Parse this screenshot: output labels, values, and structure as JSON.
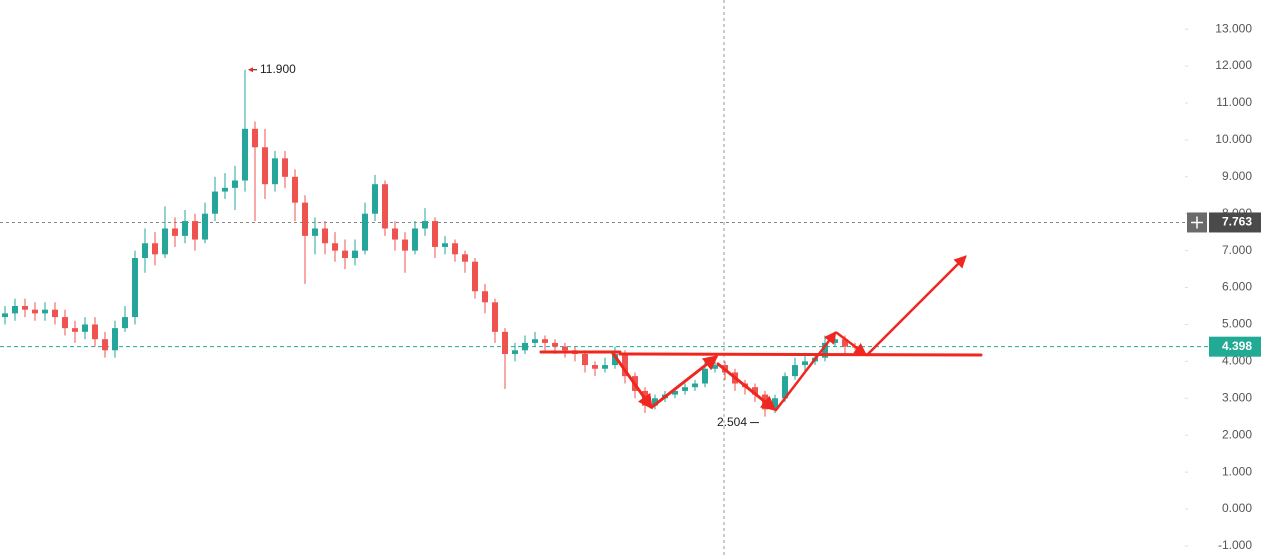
{
  "chart_data": {
    "type": "candlestick",
    "up_color": "#26a69a",
    "down_color": "#ef5350",
    "ylim": [
      -1.3,
      13.79
    ],
    "yticks": [
      {
        "value": -1,
        "label": "-1.000"
      },
      {
        "value": 0,
        "label": "0.000"
      },
      {
        "value": 1,
        "label": "1.000"
      },
      {
        "value": 2,
        "label": "2.000"
      },
      {
        "value": 3,
        "label": "3.000"
      },
      {
        "value": 4,
        "label": "4.000"
      },
      {
        "value": 5,
        "label": "5.000"
      },
      {
        "value": 6,
        "label": "6.000"
      },
      {
        "value": 7,
        "label": "7.000"
      },
      {
        "value": 8,
        "label": "8.000"
      },
      {
        "value": 9,
        "label": "9.000"
      },
      {
        "value": 10,
        "label": "10.000"
      },
      {
        "value": 11,
        "label": "11.000"
      },
      {
        "value": 12,
        "label": "12.000"
      },
      {
        "value": 13,
        "label": "13.000"
      }
    ],
    "grid": false,
    "open": [
      5.2,
      5.3,
      5.5,
      5.4,
      5.3,
      5.4,
      5.2,
      4.9,
      4.8,
      5.0,
      4.6,
      4.3,
      4.9,
      5.2,
      6.8,
      7.2,
      6.9,
      7.6,
      7.4,
      7.8,
      7.3,
      8.0,
      8.6,
      8.7,
      8.9,
      10.3,
      9.8,
      8.8,
      9.5,
      9.0,
      8.3,
      7.4,
      7.6,
      7.2,
      7.0,
      6.8,
      7.0,
      8.0,
      8.8,
      7.6,
      7.3,
      7.0,
      7.6,
      7.8,
      7.1,
      7.2,
      6.9,
      6.7,
      5.9,
      5.6,
      4.8,
      4.2,
      4.3,
      4.5,
      4.6,
      4.5,
      4.4,
      4.3,
      4.2,
      3.9,
      3.8,
      3.9,
      4.2,
      3.6,
      3.2,
      2.8,
      3.0,
      3.1,
      3.2,
      3.3,
      3.4,
      3.8,
      3.9,
      3.7,
      3.4,
      3.3,
      3.1,
      2.7,
      3.0,
      3.6,
      3.9,
      4.0,
      4.1,
      4.5,
      4.6,
      4.4
    ],
    "high": [
      5.5,
      5.7,
      5.7,
      5.6,
      5.6,
      5.6,
      5.4,
      5.1,
      5.2,
      5.2,
      4.8,
      5.1,
      5.5,
      7.0,
      7.6,
      7.5,
      8.2,
      7.9,
      8.1,
      8.0,
      8.3,
      9.0,
      9.1,
      9.3,
      11.9,
      10.5,
      10.3,
      9.7,
      9.7,
      9.2,
      8.5,
      7.9,
      7.8,
      7.5,
      7.3,
      7.3,
      8.3,
      9.05,
      8.9,
      7.8,
      7.5,
      7.8,
      8.15,
      7.9,
      7.4,
      7.3,
      7.0,
      6.8,
      6.1,
      5.7,
      4.9,
      4.5,
      4.7,
      4.8,
      4.7,
      4.6,
      4.5,
      4.4,
      4.3,
      4.0,
      4.1,
      4.4,
      4.3,
      3.7,
      3.3,
      3.1,
      3.2,
      3.3,
      3.4,
      3.5,
      4.0,
      4.1,
      4.0,
      3.8,
      3.5,
      3.4,
      3.2,
      3.1,
      3.7,
      4.1,
      4.2,
      4.2,
      4.7,
      4.8,
      4.7,
      4.5
    ],
    "low": [
      5.0,
      5.1,
      5.2,
      5.1,
      5.1,
      5.0,
      4.7,
      4.5,
      4.6,
      4.4,
      4.1,
      4.1,
      4.8,
      5.0,
      6.4,
      6.6,
      6.8,
      7.1,
      7.2,
      7.0,
      7.2,
      7.8,
      8.4,
      8.1,
      8.6,
      7.8,
      8.4,
      8.6,
      8.7,
      7.8,
      6.1,
      6.9,
      6.9,
      6.7,
      6.5,
      6.6,
      6.9,
      7.8,
      7.4,
      7.0,
      6.4,
      6.9,
      7.4,
      6.8,
      6.9,
      6.7,
      6.4,
      5.7,
      5.3,
      4.5,
      3.25,
      4.0,
      4.2,
      4.4,
      4.3,
      4.2,
      4.1,
      4.0,
      3.7,
      3.6,
      3.7,
      3.8,
      3.4,
      3.0,
      2.6,
      2.7,
      2.9,
      3.0,
      3.1,
      3.2,
      3.3,
      3.7,
      3.5,
      3.2,
      3.1,
      2.9,
      2.504,
      2.6,
      2.9,
      3.5,
      3.7,
      3.9,
      4.0,
      4.4,
      4.2,
      4.3
    ],
    "close": [
      5.3,
      5.5,
      5.4,
      5.3,
      5.4,
      5.2,
      4.9,
      4.8,
      5.0,
      4.6,
      4.3,
      4.9,
      5.2,
      6.8,
      7.2,
      6.9,
      7.6,
      7.4,
      7.8,
      7.3,
      8.0,
      8.6,
      8.7,
      8.9,
      10.3,
      9.8,
      8.8,
      9.5,
      9.0,
      8.3,
      7.4,
      7.6,
      7.2,
      7.0,
      6.8,
      7.0,
      8.0,
      8.8,
      7.6,
      7.3,
      7.0,
      7.6,
      7.8,
      7.1,
      7.2,
      6.9,
      6.7,
      5.9,
      5.6,
      4.8,
      4.2,
      4.3,
      4.5,
      4.6,
      4.5,
      4.4,
      4.3,
      4.2,
      3.9,
      3.8,
      3.9,
      4.2,
      3.6,
      3.2,
      2.8,
      3.0,
      3.1,
      3.2,
      3.3,
      3.4,
      3.8,
      3.9,
      3.7,
      3.4,
      3.3,
      3.1,
      2.7,
      3.0,
      3.6,
      3.9,
      4.0,
      4.1,
      4.5,
      4.6,
      4.4,
      4.398
    ],
    "high_label": "11.900",
    "low_label": "2.504",
    "current_price": {
      "value": 4.398,
      "label": "4.398",
      "color": "#22ab94"
    },
    "crosshair_price": {
      "value": 7.763,
      "label": "7.763",
      "color": "#4a4a4a"
    }
  }
}
